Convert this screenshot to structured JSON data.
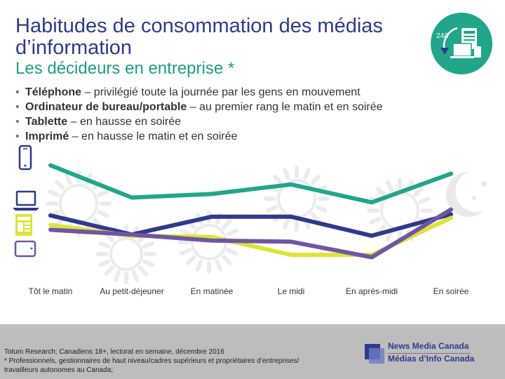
{
  "header": {
    "title": "Habitudes de consommation des médias d’information",
    "subtitle": "Les décideurs en entreprise *",
    "badge": "24/7"
  },
  "bullets": [
    {
      "bold": "Téléphone",
      "text": " – privilégié toute la journée par les gens en mouvement"
    },
    {
      "bold": "Ordinateur de bureau/portable",
      "text": " – au premier rang le matin et en soirée"
    },
    {
      "bold": "Tablette",
      "text": " – en hausse en soirée"
    },
    {
      "bold": "Imprimé",
      "text": " – en hausse le matin et en soirée"
    }
  ],
  "chart_data": {
    "type": "line",
    "categories": [
      "Tôt le matin",
      "Au petit-déjeuner",
      "En matinée",
      "Le midi",
      "En après-midi",
      "En soirée"
    ],
    "series": [
      {
        "name": "Téléphone",
        "color": "#21a68a",
        "values": [
          82,
          55,
          58,
          66,
          51,
          75
        ]
      },
      {
        "name": "Ordinateur de bureau/portable",
        "color": "#2e3a8c",
        "values": [
          40,
          24,
          39,
          39,
          23,
          41
        ]
      },
      {
        "name": "Imprimé",
        "color": "#dde33a",
        "values": [
          32,
          23,
          22,
          7,
          7,
          38
        ]
      },
      {
        "name": "Tablette",
        "color": "#6e56a3",
        "values": [
          28,
          24,
          19,
          18,
          5,
          45
        ]
      }
    ],
    "ylim": [
      0,
      100
    ],
    "grid": false,
    "legend": "icons-left",
    "xlabel": "",
    "ylabel": ""
  },
  "icons": [
    "phone-icon",
    "laptop-icon",
    "newspaper-icon",
    "tablet-icon"
  ],
  "footer": {
    "source_lines": [
      "Totum Research; Canadiens 18+, lectorat en semaine, décembre 2016",
      "* Professionnels, gestionnaires de haut niveau/cadres supérieurs et propriétaires d’entreprises/",
      "travailleurs autonomes au Canada;"
    ],
    "logo_en": "News Media Canada",
    "logo_fr": "Médias d’Info Canada"
  }
}
